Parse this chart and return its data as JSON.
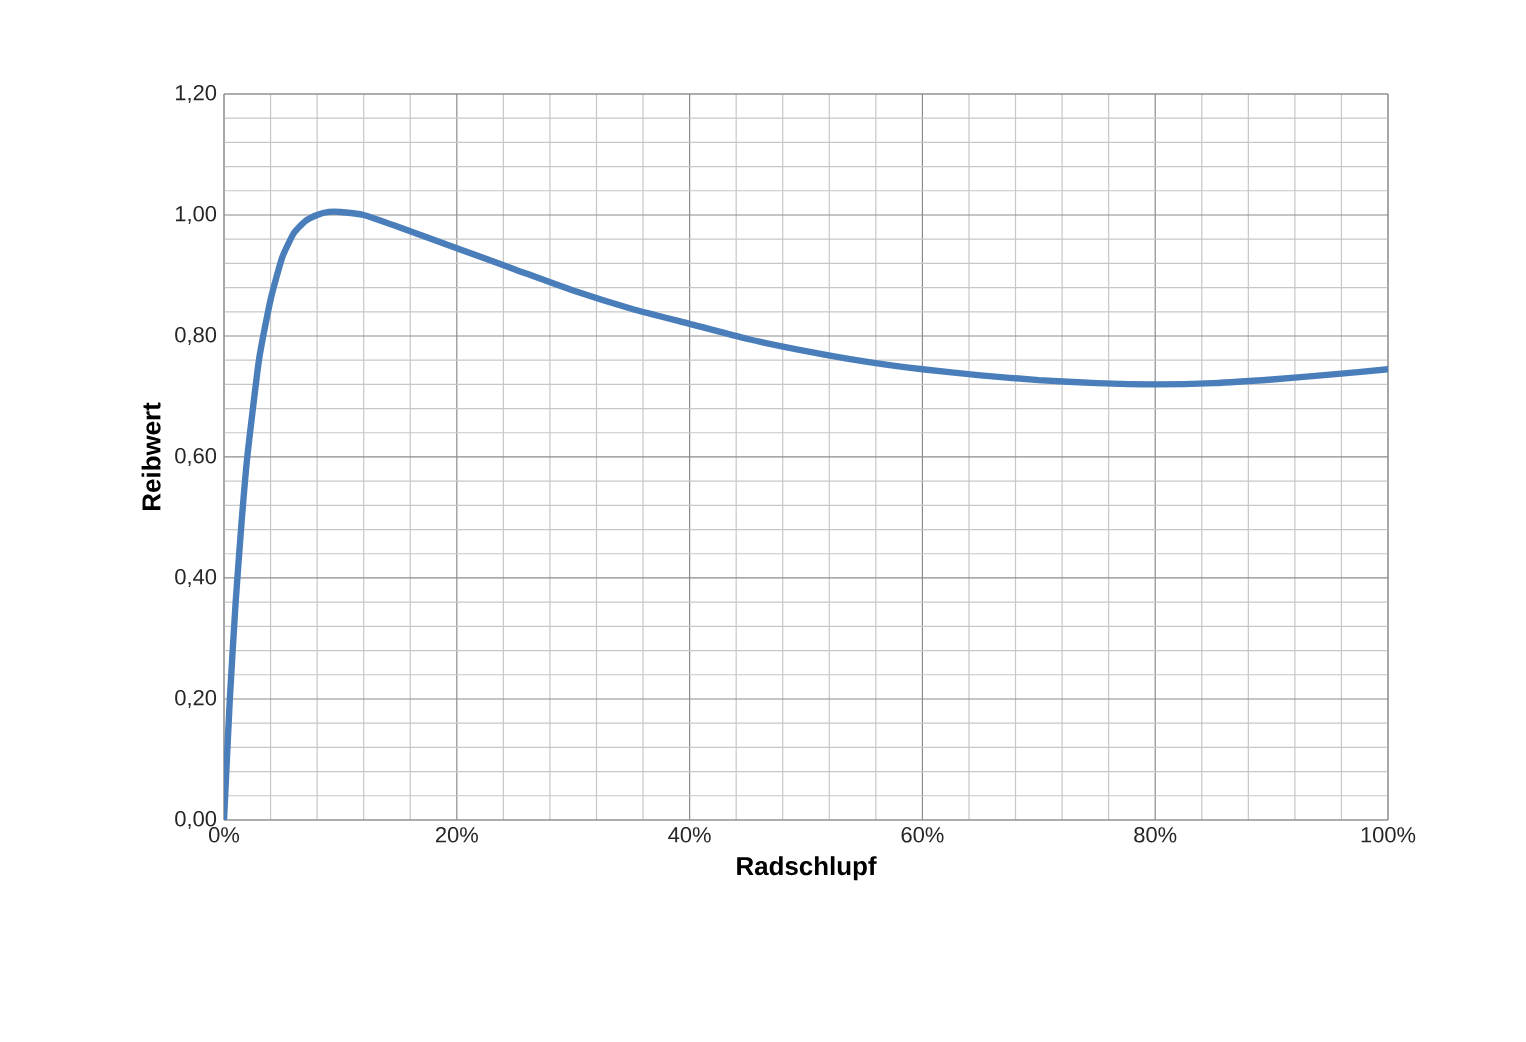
{
  "chart_data": {
    "type": "line",
    "xlabel": "Radschlupf",
    "ylabel": "Reibwert",
    "x": [
      0,
      0.5,
      1,
      1.5,
      2,
      3,
      4,
      5,
      6,
      7,
      8,
      9,
      10,
      12,
      15,
      20,
      25,
      30,
      35,
      40,
      45,
      50,
      55,
      60,
      65,
      70,
      75,
      80,
      85,
      90,
      95,
      100
    ],
    "series": [
      {
        "color": "#4a7ebb",
        "values": [
          0,
          0.2,
          0.36,
          0.49,
          0.6,
          0.76,
          0.86,
          0.93,
          0.97,
          0.99,
          1.0,
          1.005,
          1.005,
          1.0,
          0.98,
          0.945,
          0.91,
          0.875,
          0.845,
          0.82,
          0.795,
          0.775,
          0.758,
          0.745,
          0.735,
          0.727,
          0.722,
          0.72,
          0.722,
          0.728,
          0.736,
          0.745
        ]
      }
    ],
    "xlim": [
      0,
      100
    ],
    "ylim": [
      0,
      1.2
    ],
    "xticks": [
      {
        "value": 0,
        "label": "0%"
      },
      {
        "value": 20,
        "label": "20%"
      },
      {
        "value": 40,
        "label": "40%"
      },
      {
        "value": 60,
        "label": "60%"
      },
      {
        "value": 80,
        "label": "80%"
      },
      {
        "value": 100,
        "label": "100%"
      }
    ],
    "yticks": [
      {
        "value": 0,
        "label": "0,00"
      },
      {
        "value": 0.2,
        "label": "0,20"
      },
      {
        "value": 0.4,
        "label": "0,40"
      },
      {
        "value": 0.6,
        "label": "0,60"
      },
      {
        "value": 0.8,
        "label": "0,80"
      },
      {
        "value": 1.0,
        "label": "1,00"
      },
      {
        "value": 1.2,
        "label": "1,20"
      }
    ],
    "grid": true,
    "marker": "none",
    "line_style": "solid"
  }
}
